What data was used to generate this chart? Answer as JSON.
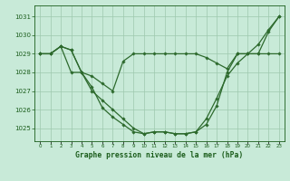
{
  "xlabel": "Graphe pression niveau de la mer (hPa)",
  "x": [
    0,
    1,
    2,
    3,
    4,
    5,
    6,
    7,
    8,
    9,
    10,
    11,
    12,
    13,
    14,
    15,
    16,
    17,
    18,
    19,
    20,
    21,
    22,
    23
  ],
  "line1": [
    1029.0,
    1029.0,
    1029.4,
    1029.2,
    1028.0,
    1027.2,
    1026.1,
    1025.6,
    1025.2,
    1024.8,
    1024.7,
    1024.8,
    1024.8,
    1024.7,
    1024.7,
    1024.8,
    1025.5,
    1026.6,
    1027.8,
    1028.5,
    1029.0,
    1029.5,
    1030.3,
    1031.0
  ],
  "line2": [
    1029.0,
    1029.0,
    1029.4,
    1028.0,
    1028.0,
    1027.0,
    1026.5,
    1026.0,
    1025.5,
    1025.0,
    1024.7,
    1024.8,
    1024.8,
    1024.7,
    1024.7,
    1024.8,
    1025.2,
    1026.2,
    1028.0,
    1029.0,
    1029.0,
    1029.0,
    1030.2,
    1031.0
  ],
  "line3": [
    1029.0,
    1029.0,
    1029.4,
    1029.2,
    1028.0,
    1027.8,
    1027.4,
    1027.0,
    1028.6,
    1029.0,
    1029.0,
    1029.0,
    1029.0,
    1029.0,
    1029.0,
    1029.0,
    1028.8,
    1028.5,
    1028.2,
    1029.0,
    1029.0,
    1029.0,
    1029.0,
    1029.0
  ],
  "line_color": "#2d6a2d",
  "bg_color": "#c8ead8",
  "grid_color": "#9ec8ae",
  "text_color": "#1a5c1a",
  "ylim_min": 1024.3,
  "ylim_max": 1031.6,
  "yticks": [
    1025,
    1026,
    1027,
    1028,
    1029,
    1030,
    1031
  ],
  "markersize": 1.8,
  "linewidth": 0.9,
  "xlabel_fontsize": 5.8,
  "ytick_fontsize": 5.0,
  "xtick_fontsize": 4.0
}
